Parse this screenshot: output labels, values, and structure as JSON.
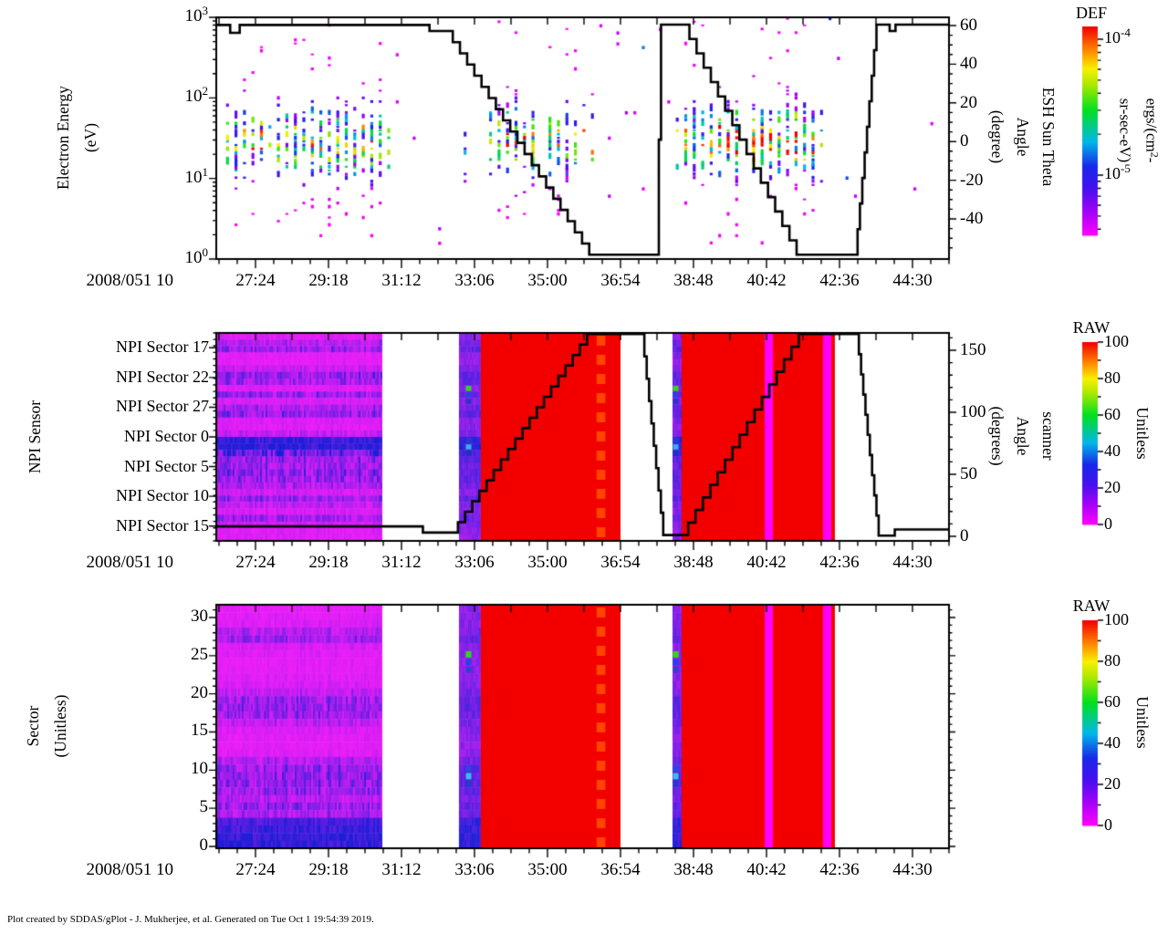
{
  "page": {
    "credit": "Plot created by SDDAS/gPlot - J. Mukherjee, et al.  Generated on Tue Oct 1 19:54:39 2019."
  },
  "x_axis": {
    "date_label": "2008/051 10",
    "tick_labels": [
      "27:24",
      "29:18",
      "31:12",
      "33:06",
      "35:00",
      "36:54",
      "38:48",
      "40:42",
      "42:36",
      "44:30"
    ]
  },
  "palette": {
    "rainbow_pos": [
      0.0,
      0.1,
      0.22,
      0.33,
      0.45,
      0.6,
      0.72,
      0.8,
      0.9,
      1.0
    ],
    "rainbow_col": [
      "#FF00FF",
      "#B000F8",
      "#4810F0",
      "#1828E8",
      "#00B8E8",
      "#00E020",
      "#A8E800",
      "#F8F000",
      "#FF7800",
      "#F00000"
    ],
    "red_block": "#F20000",
    "magenta_stripe": "#FF00FF",
    "orange_dash": "#FF4500",
    "line_color": "#000000"
  },
  "chart_data": [
    {
      "type": "heatmap",
      "name": "electron-energy-spectrogram",
      "y_axis": {
        "label_lines": [
          "Electron Energy",
          "(eV)"
        ],
        "scale": "log",
        "lim": [
          1,
          1000
        ],
        "ticks": [
          {
            "base": "10",
            "exp": "3"
          },
          {
            "base": "10",
            "exp": "2"
          },
          {
            "base": "10",
            "exp": "1"
          },
          {
            "base": "10",
            "exp": "0"
          }
        ]
      },
      "right_axis": {
        "label_lines": [
          "ESH Sun Theta",
          "Angle",
          "(degree)"
        ],
        "lim": [
          -60,
          64
        ],
        "ticks": [
          60,
          40,
          20,
          0,
          -20,
          -40
        ],
        "minor_step": 5
      },
      "colorbar": {
        "title": "DEF",
        "scale": "log",
        "unit_parts": [
          "ergs/(cm",
          "2",
          "-sr-sec-eV)"
        ],
        "ticks": [
          {
            "base": "10",
            "exp": "-4"
          },
          {
            "base": "10",
            "exp": "-5"
          }
        ]
      },
      "band": {
        "log_center": 1.45,
        "log_sigma": 0.42
      },
      "bursts": [
        {
          "x0": 0.0,
          "x1": 0.245,
          "hot": false
        },
        {
          "x0": 0.334,
          "x1": 0.515,
          "hot": false
        },
        {
          "x0": 0.627,
          "x1": 0.832,
          "hot": true
        }
      ],
      "sparse": [
        {
          "x0": 0.245,
          "x1": 0.334,
          "p": 0.02
        },
        {
          "x0": 0.515,
          "x1": 0.627,
          "p": 0.02
        },
        {
          "x0": 0.832,
          "x1": 0.885,
          "p": 0.016
        },
        {
          "x0": 0.885,
          "x1": 1.0,
          "p": 0.004
        }
      ],
      "overlay_line": {
        "name": "esh-sun-theta-angle",
        "segments": [
          [
            "f",
            0.0,
            60.3,
            0.013,
            60.3
          ],
          [
            "s",
            0.013,
            60.3,
            0.019,
            56.2
          ],
          [
            "f",
            0.019,
            56.2,
            0.027,
            56.2
          ],
          [
            "s",
            0.027,
            56.2,
            0.032,
            60.3
          ],
          [
            "f",
            0.032,
            60.3,
            0.283,
            60.3
          ],
          [
            "s",
            0.283,
            60.3,
            0.291,
            57.2
          ],
          [
            "f",
            0.291,
            57.2,
            0.313,
            57.2
          ],
          [
            "s",
            0.313,
            57.2,
            0.509,
            -58.5
          ],
          [
            "f",
            0.509,
            -58.5,
            0.601,
            -58.5
          ],
          [
            "v",
            0.601,
            -58.5,
            0.607,
            60.5
          ],
          [
            "f",
            0.607,
            60.5,
            0.636,
            60.5
          ],
          [
            "s",
            0.636,
            60.5,
            0.792,
            -58.5
          ],
          [
            "f",
            0.792,
            -58.5,
            0.872,
            -58.5
          ],
          [
            "v",
            0.872,
            -58.5,
            0.901,
            60.5
          ],
          [
            "f",
            0.901,
            60.5,
            0.916,
            60.5
          ],
          [
            "s",
            0.916,
            60.5,
            0.919,
            57.2
          ],
          [
            "f",
            0.919,
            57.2,
            0.924,
            57.2
          ],
          [
            "s",
            0.924,
            57.2,
            0.927,
            60.5
          ],
          [
            "f",
            0.927,
            60.5,
            1.0,
            60.5
          ]
        ]
      }
    },
    {
      "type": "heatmap",
      "name": "npi-sensor-panel",
      "y_axis": {
        "label_lines": [
          "NPI Sensor"
        ],
        "category_labels": [
          "NPI Sector 17",
          "NPI Sector 22",
          "NPI Sector 27",
          "NPI Sector 0",
          "NPI Sector 5",
          "NPI Sector 10",
          "NPI Sector 15"
        ]
      },
      "right_axis": {
        "label_lines": [
          "scanner",
          "Angle",
          "(degrees)"
        ],
        "lim": [
          -4,
          164
        ],
        "ticks": [
          150,
          100,
          50,
          0
        ],
        "minor_step": 10
      },
      "colorbar": {
        "title": "RAW",
        "unit": "Unitless",
        "ticks": [
          100,
          80,
          60,
          40,
          20,
          0
        ]
      },
      "row_shade": [
        0.12,
        0.3,
        0.42,
        0.1,
        0.1,
        0.22,
        0.45,
        0.4,
        0.12,
        0.42,
        0.15,
        0.35,
        0.45,
        0.15,
        0.12,
        0.25,
        0.88,
        0.92,
        0.7,
        0.45,
        0.42,
        0.48,
        0.45,
        0.35,
        0.18,
        0.42,
        0.25,
        0.15,
        0.4,
        0.18,
        0.12,
        0.12
      ],
      "regions": [
        {
          "kind": "texture",
          "x0": 0.0,
          "x1": 0.2254
        },
        {
          "kind": "stripe",
          "x0": 0.3312,
          "x1": 0.3612
        },
        {
          "kind": "red",
          "x0": 0.3612,
          "x1": 0.5517
        },
        {
          "kind": "dash",
          "x0": 0.519,
          "x1": 0.531
        },
        {
          "kind": "stripe",
          "x0": 0.6227,
          "x1": 0.6352
        },
        {
          "kind": "red",
          "x0": 0.6352,
          "x1": 0.8443
        },
        {
          "kind": "mstripe",
          "x0": 0.7485,
          "x1": 0.7597
        },
        {
          "kind": "mstripe",
          "x0": 0.8282,
          "x1": 0.8394
        }
      ],
      "stripe_dots": [
        {
          "row": 8,
          "color": "#30D818"
        },
        {
          "row": 9,
          "color": "#2840E8"
        },
        {
          "row": 10,
          "color": "#3030C8"
        },
        {
          "row": 16,
          "color": "#2838D8"
        },
        {
          "row": 17,
          "color": "#38B0E8"
        },
        {
          "row": 18,
          "color": "#2030C0"
        }
      ],
      "overlay_line": {
        "name": "scanner-angle",
        "segments": [
          [
            "f",
            0.0,
            8,
            0.272,
            8
          ],
          [
            "s",
            0.272,
            8,
            0.282,
            3
          ],
          [
            "f",
            0.282,
            3,
            0.32,
            3
          ],
          [
            "s",
            0.32,
            3,
            0.506,
            163
          ],
          [
            "f",
            0.506,
            163,
            0.581,
            163
          ],
          [
            "v",
            0.581,
            163,
            0.61,
            1
          ],
          [
            "f",
            0.61,
            1,
            0.634,
            1
          ],
          [
            "s",
            0.634,
            1,
            0.795,
            163
          ],
          [
            "f",
            0.795,
            163,
            0.874,
            163
          ],
          [
            "v",
            0.874,
            163,
            0.904,
            0.5
          ],
          [
            "f",
            0.904,
            0.5,
            0.921,
            0.5
          ],
          [
            "s",
            0.921,
            0.5,
            0.926,
            5.5
          ],
          [
            "f",
            0.926,
            5.5,
            1.0,
            5.5
          ]
        ]
      }
    },
    {
      "type": "heatmap",
      "name": "sector-panel",
      "y_axis": {
        "label_lines": [
          "Sector",
          "(Unitless)"
        ],
        "lim": [
          -0.3,
          31.7
        ],
        "ticks": [
          30,
          25,
          20,
          15,
          10,
          5,
          0
        ],
        "minor_step": 1
      },
      "right_axis": {
        "label_lines": [],
        "ticks": [],
        "minor_step": 1,
        "mirror": true
      },
      "colorbar": {
        "title": "RAW",
        "unit": "Unitless",
        "ticks": [
          100,
          80,
          60,
          40,
          20,
          0
        ]
      },
      "row_shade": [
        0.1,
        0.12,
        0.15,
        0.3,
        0.4,
        0.15,
        0.12,
        0.1,
        0.1,
        0.12,
        0.15,
        0.28,
        0.42,
        0.45,
        0.4,
        0.28,
        0.15,
        0.12,
        0.1,
        0.12,
        0.3,
        0.45,
        0.48,
        0.45,
        0.42,
        0.3,
        0.45,
        0.35,
        0.8,
        0.85,
        0.88,
        0.9
      ],
      "regions": [
        {
          "kind": "texture",
          "x0": 0.0,
          "x1": 0.2254
        },
        {
          "kind": "stripe",
          "x0": 0.3312,
          "x1": 0.3612
        },
        {
          "kind": "red",
          "x0": 0.3612,
          "x1": 0.5517
        },
        {
          "kind": "dash",
          "x0": 0.519,
          "x1": 0.531
        },
        {
          "kind": "stripe",
          "x0": 0.6227,
          "x1": 0.6352
        },
        {
          "kind": "red",
          "x0": 0.6352,
          "x1": 0.8443
        },
        {
          "kind": "mstripe",
          "x0": 0.7485,
          "x1": 0.7597
        },
        {
          "kind": "mstripe",
          "x0": 0.8282,
          "x1": 0.8394
        }
      ],
      "stripe_dots": [
        {
          "row": 6,
          "color": "#30D818"
        },
        {
          "row": 7,
          "color": "#2840E8"
        },
        {
          "row": 8,
          "color": "#3040D0"
        },
        {
          "row": 21,
          "color": "#2848E0"
        },
        {
          "row": 22,
          "color": "#38C0E8"
        },
        {
          "row": 23,
          "color": "#2838C8"
        }
      ]
    }
  ]
}
